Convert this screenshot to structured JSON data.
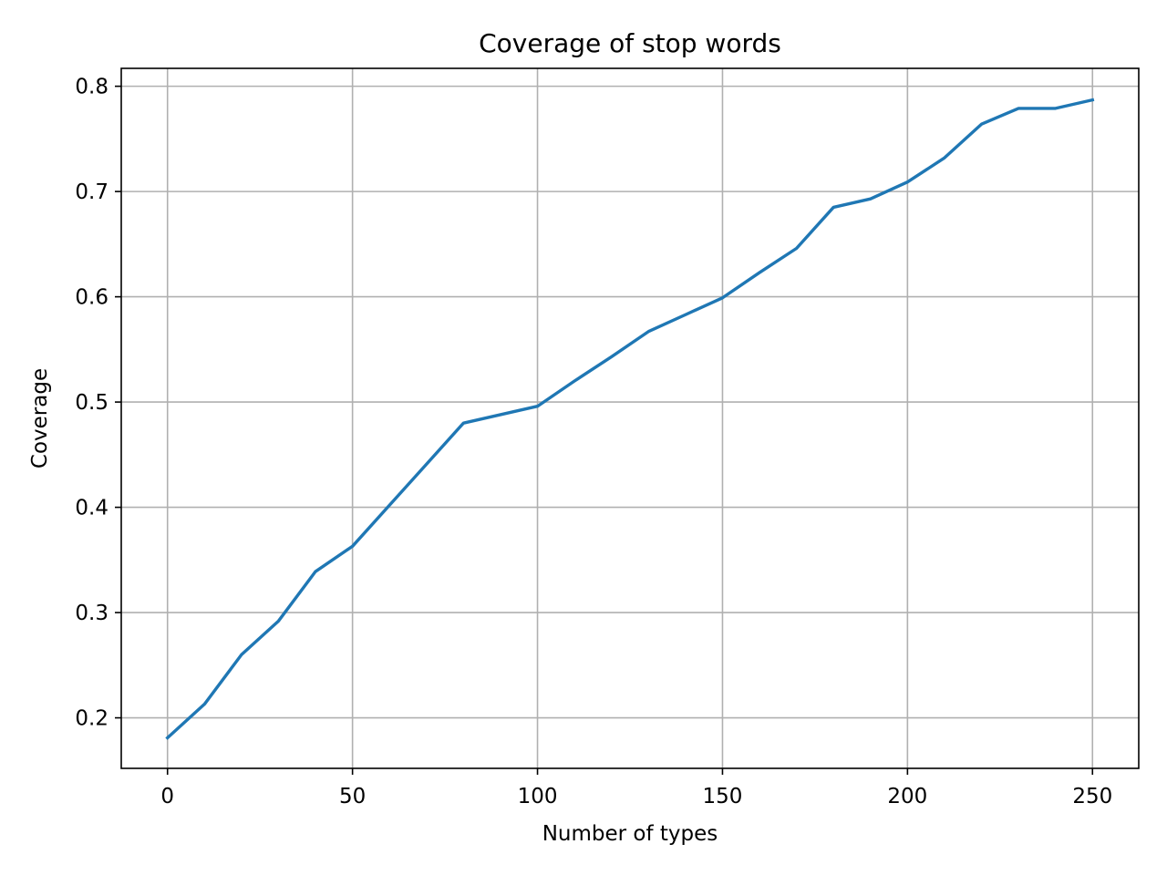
{
  "chart_data": {
    "type": "line",
    "title": "Coverage of stop words",
    "xlabel": "Number of types",
    "ylabel": "Coverage",
    "xlim": [
      -12.5,
      262.5
    ],
    "ylim": [
      0.152,
      0.817
    ],
    "xticks": [
      0,
      50,
      100,
      150,
      200,
      250
    ],
    "xtick_labels": [
      "0",
      "50",
      "100",
      "150",
      "200",
      "250"
    ],
    "yticks": [
      0.2,
      0.3,
      0.4,
      0.5,
      0.6,
      0.7,
      0.8
    ],
    "ytick_labels": [
      "0.2",
      "0.3",
      "0.4",
      "0.5",
      "0.6",
      "0.7",
      "0.8"
    ],
    "grid": true,
    "legend": "none",
    "series": [
      {
        "color": "#1f77b4",
        "x": [
          0,
          10,
          20,
          30,
          40,
          50,
          60,
          70,
          80,
          90,
          100,
          110,
          120,
          130,
          140,
          150,
          160,
          170,
          180,
          190,
          200,
          210,
          220,
          230,
          240,
          250
        ],
        "y": [
          0.181,
          0.213,
          0.26,
          0.292,
          0.339,
          0.363,
          0.402,
          0.441,
          0.48,
          0.488,
          0.496,
          0.52,
          0.543,
          0.567,
          0.583,
          0.599,
          0.623,
          0.646,
          0.685,
          0.693,
          0.709,
          0.732,
          0.764,
          0.779,
          0.779,
          0.787
        ]
      }
    ]
  }
}
